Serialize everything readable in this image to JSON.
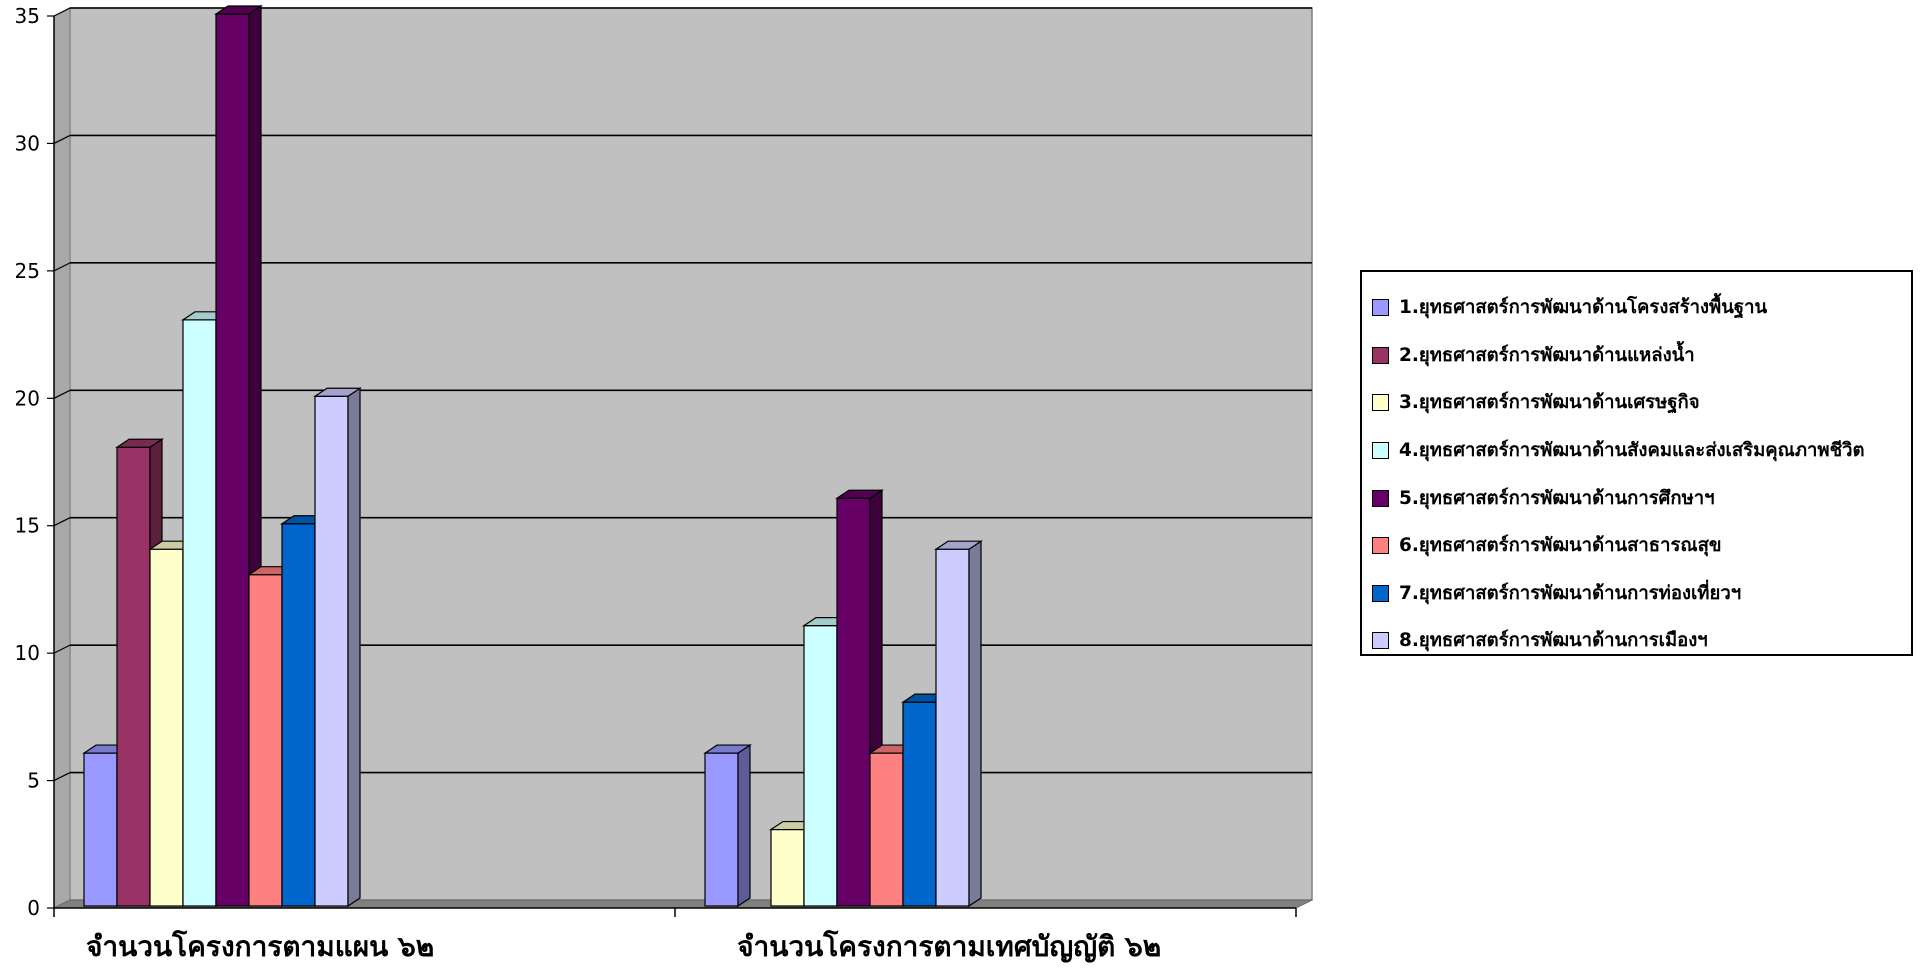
{
  "chart_data": {
    "type": "bar",
    "categories": [
      "จำนวนโครงการตามแผน ๖๒",
      "จำนวนโครงการตามเทศบัญญัติ ๖๒"
    ],
    "series": [
      {
        "name": "1.ยุทธศาสตร์การพัฒนาด้านโครงสร้างพื้นฐาน",
        "values": [
          6,
          6
        ],
        "color": "#9999ff"
      },
      {
        "name": "2.ยุทธศาสตร์การพัฒนาด้านแหล่งน้ำ",
        "values": [
          18,
          0
        ],
        "color": "#993366"
      },
      {
        "name": "3.ยุทธศาสตร์การพัฒนาด้านเศรษฐกิจ",
        "values": [
          14,
          3
        ],
        "color": "#ffffcc"
      },
      {
        "name": "4.ยุทธศาสตร์การพัฒนาด้านสังคมและส่งเสริมคุณภาพชีวิต",
        "values": [
          23,
          11
        ],
        "color": "#ccffff"
      },
      {
        "name": "5.ยุทธศาสตร์การพัฒนาด้านการศึกษาฯ",
        "values": [
          35,
          16
        ],
        "color": "#660066"
      },
      {
        "name": "6.ยุทธศาสตร์การพัฒนาด้านสาธารณสุข",
        "values": [
          13,
          6
        ],
        "color": "#ff8080"
      },
      {
        "name": "7.ยุทธศาสตร์การพัฒนาด้านการท่องเที่ยวฯ",
        "values": [
          15,
          8
        ],
        "color": "#0066cc"
      },
      {
        "name": "8.ยุทธศาสตร์การพัฒนาด้านการเมืองฯ",
        "values": [
          20,
          14
        ],
        "color": "#ccccff"
      }
    ],
    "y_ticks": [
      "0",
      "5",
      "10",
      "15",
      "20",
      "25",
      "30",
      "35"
    ],
    "ylim": [
      0,
      35
    ],
    "grid": true,
    "legend_position": "right",
    "plot_background": "#c0c0c0"
  }
}
